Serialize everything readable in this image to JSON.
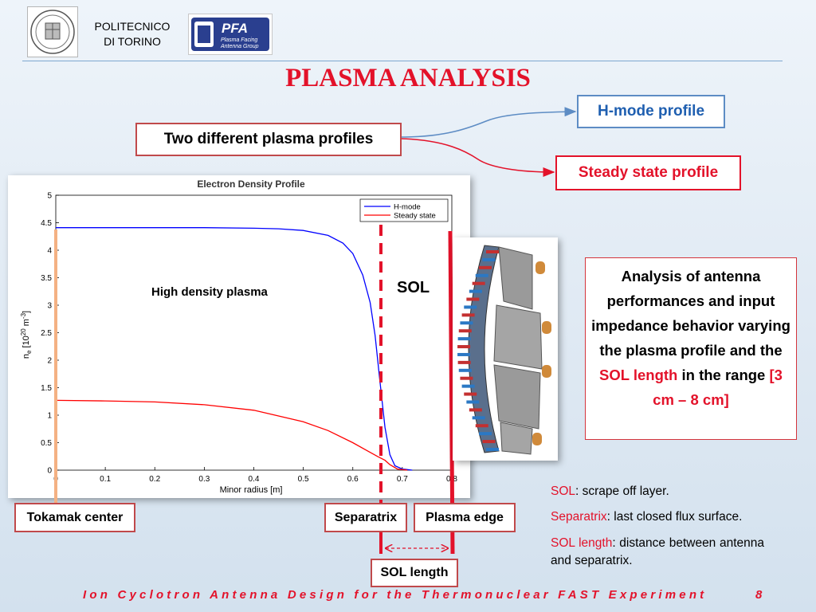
{
  "header": {
    "institution_line1": "POLITECNICO",
    "institution_line2": "DI TORINO",
    "pfa_logo_text": "PFA",
    "pfa_logo_sub1": "Plasma Facing",
    "pfa_logo_sub2": "Antenna Group"
  },
  "title": "PLASMA ANALYSIS",
  "profiles_box": "Two different plasma profiles",
  "hmode_box": "H-mode profile",
  "steady_box": "Steady state profile",
  "analysis": {
    "text1": "Analysis of antenna performances and input impedance behavior varying the plasma profile and the",
    "highlight1": "SOL length",
    "text2": "in the range",
    "highlight2": "[3 cm – 8 cm]"
  },
  "chart_labels": {
    "high_density": "High density plasma",
    "sol": "SOL"
  },
  "bottom_labels": {
    "tokamak_center": "Tokamak center",
    "separatrix": "Separatrix",
    "plasma_edge": "Plasma edge",
    "sol_length": "SOL length"
  },
  "definitions": [
    {
      "term": "SOL",
      "text": ": scrape off layer."
    },
    {
      "term": "Separatrix",
      "text": ": last closed flux surface."
    },
    {
      "term": "SOL length",
      "text": ": distance between antenna and separatrix."
    }
  ],
  "footer": {
    "text": "Ion Cyclotron Antenna Design for the Thermonuclear FAST Experiment",
    "page": "8"
  },
  "colors": {
    "accent_red": "#e3122a",
    "hmode_blue": "#1f5fb0",
    "series_hmode": "#0000ff",
    "series_steady": "#ff0000"
  },
  "chart_data": {
    "type": "line",
    "title": "Electron Density Profile",
    "xlabel": "Minor radius [m]",
    "ylabel": "n_e [10^20 m^-3]",
    "xlim": [
      0,
      0.8
    ],
    "ylim": [
      0,
      5
    ],
    "xticks": [
      "0",
      "0.1",
      "0.2",
      "0.3",
      "0.4",
      "0.5",
      "0.6",
      "0.7",
      "0.8"
    ],
    "yticks": [
      "0",
      "0.5",
      "1",
      "1.5",
      "2",
      "2.5",
      "3",
      "3.5",
      "4",
      "4.5",
      "5"
    ],
    "legend_position": "top-right",
    "series": [
      {
        "name": "H-mode",
        "color": "#0000ff",
        "x": [
          0,
          0.1,
          0.2,
          0.3,
          0.4,
          0.45,
          0.5,
          0.55,
          0.58,
          0.6,
          0.62,
          0.635,
          0.645,
          0.655,
          0.665,
          0.675,
          0.685,
          0.7,
          0.72
        ],
        "y": [
          4.41,
          4.41,
          4.41,
          4.41,
          4.4,
          4.39,
          4.36,
          4.27,
          4.13,
          3.94,
          3.55,
          3.05,
          2.45,
          1.6,
          0.78,
          0.28,
          0.08,
          0.02,
          0.0
        ]
      },
      {
        "name": "Steady state",
        "color": "#ff0000",
        "x": [
          0,
          0.1,
          0.2,
          0.3,
          0.4,
          0.5,
          0.55,
          0.6,
          0.63,
          0.65,
          0.665,
          0.675,
          0.69,
          0.71
        ],
        "y": [
          1.27,
          1.26,
          1.24,
          1.19,
          1.09,
          0.88,
          0.72,
          0.5,
          0.35,
          0.25,
          0.18,
          0.1,
          0.02,
          0.0
        ]
      }
    ],
    "markers": {
      "tokamak_center_x": 0.0,
      "separatrix_x": 0.655,
      "plasma_edge_x": 0.8
    }
  }
}
